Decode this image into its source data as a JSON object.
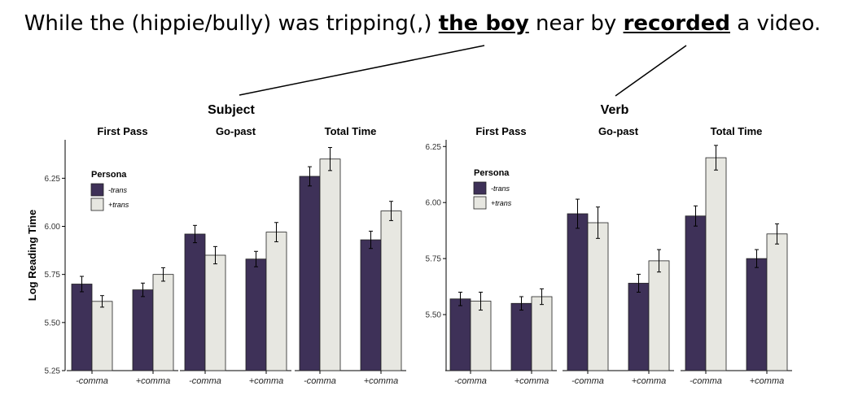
{
  "sentence": {
    "pre": "While the (hippie/bully) was tripping(,) ",
    "subject": "the boy",
    "mid": " near by ",
    "verb": "recorded",
    "post": " a video."
  },
  "colors": {
    "trans_minus": "#3e3158",
    "trans_plus": "#e7e7e1"
  },
  "chart_data": [
    {
      "type": "bar",
      "title": "Subject",
      "ylabel": "Log Reading Time",
      "ylim": [
        5.25,
        6.45
      ],
      "yticks": [
        "5.25",
        "5.50",
        "5.75",
        "6.00",
        "6.25"
      ],
      "legend": {
        "title": "Persona",
        "entries": [
          "-trans",
          "+trans"
        ],
        "placement": "top-left"
      },
      "panels": [
        {
          "title": "First Pass",
          "categories": [
            "-comma",
            "+comma"
          ],
          "series": [
            {
              "name": "-trans",
              "values": [
                5.7,
                5.67
              ],
              "err": [
                0.04,
                0.035
              ]
            },
            {
              "name": "+trans",
              "values": [
                5.61,
                5.75
              ],
              "err": [
                0.03,
                0.035
              ]
            }
          ]
        },
        {
          "title": "Go-past",
          "categories": [
            "-comma",
            "+comma"
          ],
          "series": [
            {
              "name": "-trans",
              "values": [
                5.96,
                5.83
              ],
              "err": [
                0.045,
                0.04
              ]
            },
            {
              "name": "+trans",
              "values": [
                5.85,
                5.97
              ],
              "err": [
                0.045,
                0.05
              ]
            }
          ]
        },
        {
          "title": "Total Time",
          "categories": [
            "-comma",
            "+comma"
          ],
          "series": [
            {
              "name": "-trans",
              "values": [
                6.26,
                5.93
              ],
              "err": [
                0.05,
                0.045
              ]
            },
            {
              "name": "+trans",
              "values": [
                6.35,
                6.08
              ],
              "err": [
                0.06,
                0.05
              ]
            }
          ]
        }
      ]
    },
    {
      "type": "bar",
      "title": "Verb",
      "ylabel": "",
      "ylim": [
        5.25,
        6.28
      ],
      "yticks": [
        "5.50",
        "5.75",
        "6.00",
        "6.25"
      ],
      "legend": {
        "title": "Persona",
        "entries": [
          "-trans",
          "+trans"
        ],
        "placement": "top-left"
      },
      "panels": [
        {
          "title": "First Pass",
          "categories": [
            "-comma",
            "+comma"
          ],
          "series": [
            {
              "name": "-trans",
              "values": [
                5.57,
                5.55
              ],
              "err": [
                0.03,
                0.03
              ]
            },
            {
              "name": "+trans",
              "values": [
                5.56,
                5.58
              ],
              "err": [
                0.04,
                0.035
              ]
            }
          ]
        },
        {
          "title": "Go-past",
          "categories": [
            "-comma",
            "+comma"
          ],
          "series": [
            {
              "name": "-trans",
              "values": [
                5.95,
                5.64
              ],
              "err": [
                0.065,
                0.04
              ]
            },
            {
              "name": "+trans",
              "values": [
                5.91,
                5.74
              ],
              "err": [
                0.07,
                0.05
              ]
            }
          ]
        },
        {
          "title": "Total Time",
          "categories": [
            "-comma",
            "+comma"
          ],
          "series": [
            {
              "name": "-trans",
              "values": [
                5.94,
                5.75
              ],
              "err": [
                0.045,
                0.04
              ]
            },
            {
              "name": "+trans",
              "values": [
                6.2,
                5.86
              ],
              "err": [
                0.055,
                0.045
              ]
            }
          ]
        }
      ]
    }
  ]
}
